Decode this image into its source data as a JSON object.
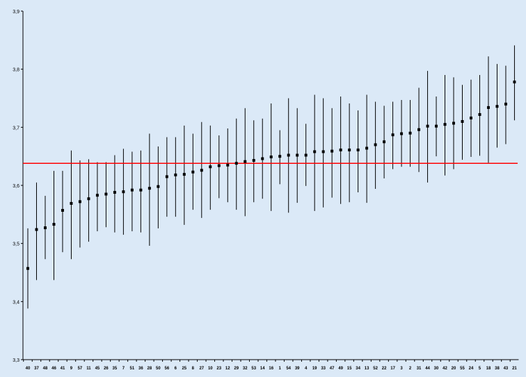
{
  "chart_data": {
    "type": "scatter",
    "title": "",
    "xlabel": "",
    "ylabel": "",
    "ylim": [
      3.3,
      3.9
    ],
    "y_ticks": [
      "3,3",
      "3,4",
      "3,5",
      "3,6",
      "3,7",
      "3,8",
      "3,9"
    ],
    "reference_line": 3.638,
    "grid": false,
    "categories": [
      "40",
      "37",
      "48",
      "46",
      "41",
      "9",
      "57",
      "11",
      "45",
      "26",
      "35",
      "7",
      "51",
      "36",
      "28",
      "50",
      "56",
      "6",
      "25",
      "8",
      "27",
      "10",
      "23",
      "12",
      "29",
      "32",
      "53",
      "14",
      "16",
      "1",
      "54",
      "39",
      "4",
      "19",
      "33",
      "47",
      "49",
      "15",
      "34",
      "13",
      "52",
      "22",
      "17",
      "3",
      "2",
      "31",
      "44",
      "30",
      "42",
      "20",
      "55",
      "24",
      "5",
      "18",
      "38",
      "43",
      "21"
    ],
    "values": [
      3.457,
      3.524,
      3.527,
      3.533,
      3.557,
      3.569,
      3.572,
      3.577,
      3.583,
      3.585,
      3.588,
      3.589,
      3.592,
      3.592,
      3.595,
      3.598,
      3.615,
      3.618,
      3.619,
      3.623,
      3.626,
      3.632,
      3.634,
      3.635,
      3.638,
      3.641,
      3.643,
      3.646,
      3.649,
      3.65,
      3.652,
      3.652,
      3.652,
      3.658,
      3.658,
      3.659,
      3.661,
      3.661,
      3.661,
      3.664,
      3.67,
      3.675,
      3.687,
      3.689,
      3.69,
      3.696,
      3.702,
      3.702,
      3.705,
      3.707,
      3.71,
      3.716,
      3.722,
      3.734,
      3.736,
      3.74,
      3.778
    ],
    "err_low": [
      3.388,
      3.437,
      3.473,
      3.437,
      3.485,
      3.473,
      3.493,
      3.503,
      3.521,
      3.528,
      3.519,
      3.515,
      3.521,
      3.519,
      3.496,
      3.526,
      3.546,
      3.546,
      3.532,
      3.558,
      3.544,
      3.558,
      3.578,
      3.571,
      3.558,
      3.547,
      3.571,
      3.577,
      3.556,
      3.602,
      3.553,
      3.57,
      3.599,
      3.556,
      3.562,
      3.579,
      3.568,
      3.571,
      3.588,
      3.57,
      3.594,
      3.612,
      3.628,
      3.632,
      3.632,
      3.623,
      3.605,
      3.65,
      3.617,
      3.628,
      3.644,
      3.649,
      3.651,
      3.639,
      3.665,
      3.671,
      3.712
    ],
    "err_high": [
      3.526,
      3.605,
      3.582,
      3.625,
      3.625,
      3.66,
      3.643,
      3.645,
      3.64,
      3.64,
      3.652,
      3.663,
      3.658,
      3.66,
      3.689,
      3.667,
      3.683,
      3.683,
      3.703,
      3.689,
      3.709,
      3.703,
      3.686,
      3.698,
      3.715,
      3.733,
      3.712,
      3.715,
      3.741,
      3.695,
      3.75,
      3.733,
      3.706,
      3.756,
      3.75,
      3.733,
      3.753,
      3.741,
      3.729,
      3.756,
      3.744,
      3.737,
      3.744,
      3.747,
      3.747,
      3.768,
      3.797,
      3.753,
      3.79,
      3.786,
      3.773,
      3.782,
      3.79,
      3.822,
      3.809,
      3.806,
      3.841
    ],
    "colors": {
      "points": "#000000",
      "error_bars": "#000000",
      "reference_line": "#ff0000",
      "axis": "#000000",
      "background": "#dbe9f7"
    }
  }
}
